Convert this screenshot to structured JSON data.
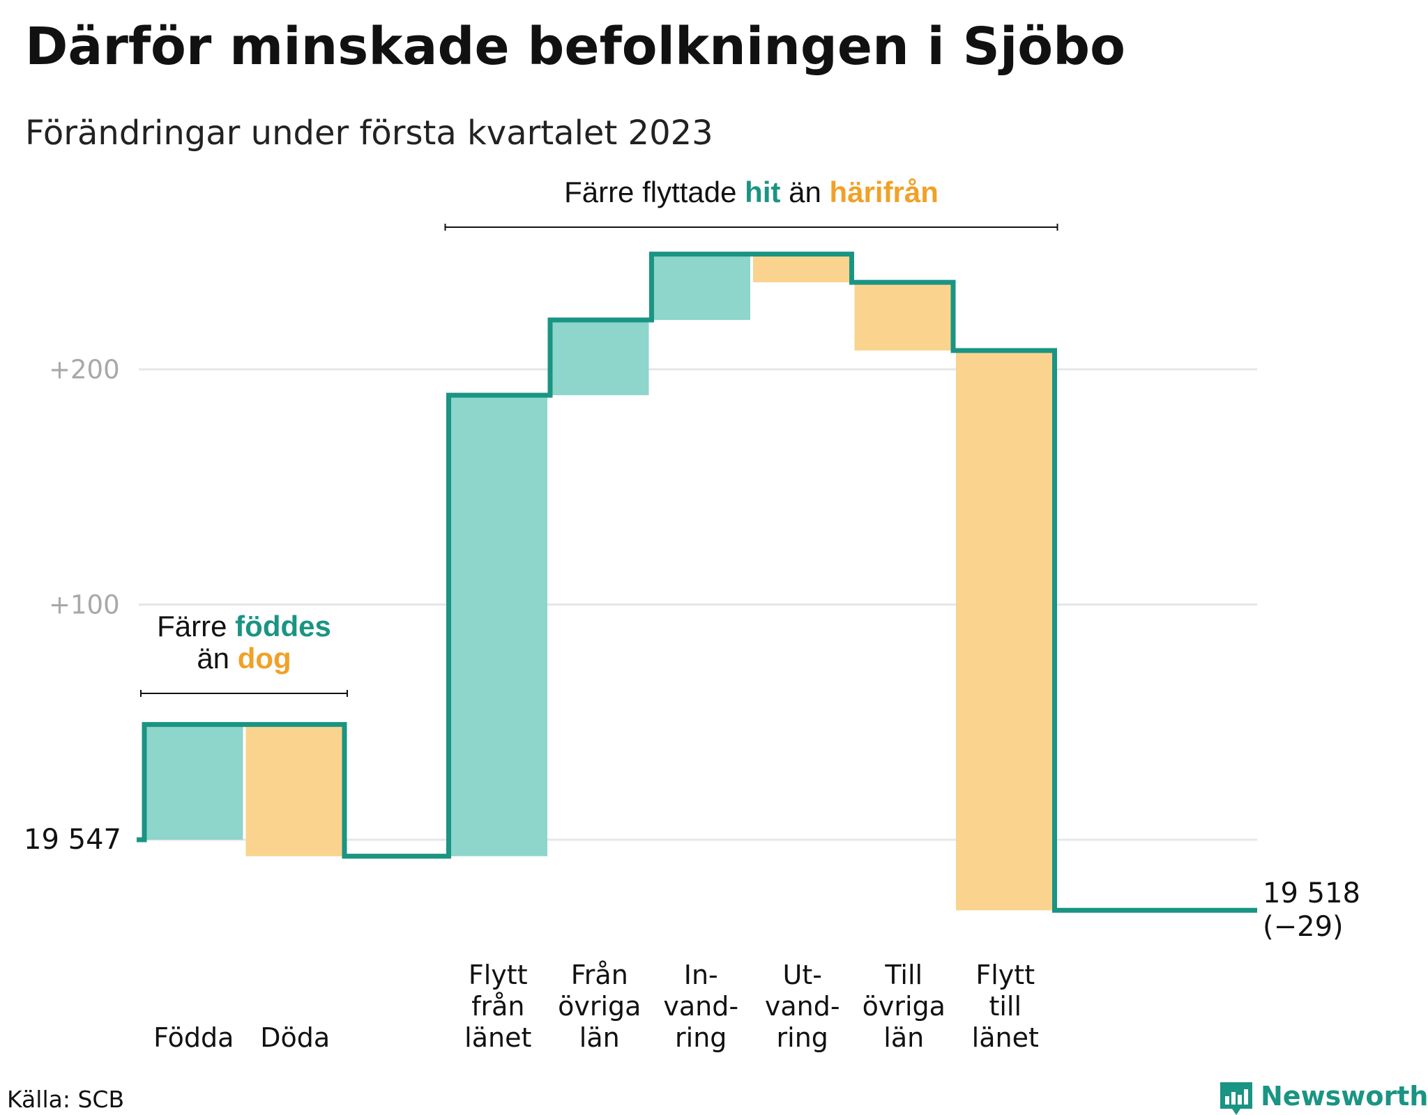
{
  "title": "Därför minskade befolkningen i Sjöbo",
  "subtitle": "Förändringar under första kvartalet 2023",
  "source": "Källa: SCB",
  "brand": "Newsworthy",
  "colors": {
    "inflow_fill": "#8ed5cc",
    "outflow_fill": "#fad48e",
    "line": "#1a9483",
    "accent_teal": "#1a9483",
    "accent_orange": "#f0a127",
    "grid": "#e6e6e6"
  },
  "chart_data": {
    "type": "waterfall",
    "start": {
      "label": "19 547",
      "value": 0
    },
    "end": {
      "label": "19 518",
      "sublabel": "(−29)",
      "value": -29
    },
    "steps": [
      {
        "key": "fodda",
        "label_lines": [
          "Födda"
        ],
        "change": 49,
        "kind": "in"
      },
      {
        "key": "doda",
        "label_lines": [
          "Döda"
        ],
        "change": -56,
        "kind": "out"
      },
      {
        "key": "flytt_fran_lanet",
        "label_lines": [
          "Flytt",
          "från",
          "länet"
        ],
        "change": 196,
        "kind": "in"
      },
      {
        "key": "fran_ovriga_lan",
        "label_lines": [
          "Från",
          "övriga",
          "län"
        ],
        "change": 32,
        "kind": "in"
      },
      {
        "key": "invandring",
        "label_lines": [
          "In-",
          "vand-",
          "ring"
        ],
        "change": 28,
        "kind": "in"
      },
      {
        "key": "utvandring",
        "label_lines": [
          "Ut-",
          "vand-",
          "ring"
        ],
        "change": -12,
        "kind": "out"
      },
      {
        "key": "till_ovriga_lan",
        "label_lines": [
          "Till",
          "övriga",
          "län"
        ],
        "change": -29,
        "kind": "out"
      },
      {
        "key": "flytt_till_lanet",
        "label_lines": [
          "Flytt",
          "till",
          "länet"
        ],
        "change": -238,
        "kind": "out"
      }
    ],
    "y_ticks": [
      {
        "value": 0,
        "label": "19 547",
        "style": "dark"
      },
      {
        "value": 100,
        "label": "+100",
        "style": "grey"
      },
      {
        "value": 200,
        "label": "+200",
        "style": "grey"
      }
    ],
    "ylim": [
      -40,
      260
    ],
    "grid": true,
    "annotations": [
      {
        "key": "births",
        "spans": [
          "fodda",
          "doda"
        ],
        "lines": [
          [
            {
              "text": "Färre ",
              "tone": "plain"
            },
            {
              "text": "föddes",
              "tone": "teal"
            }
          ],
          [
            {
              "text": "än ",
              "tone": "plain"
            },
            {
              "text": "dog",
              "tone": "orange"
            }
          ]
        ]
      },
      {
        "key": "migration",
        "spans": [
          "flytt_fran_lanet",
          "flytt_till_lanet"
        ],
        "lines": [
          [
            {
              "text": "Färre flyttade ",
              "tone": "plain"
            },
            {
              "text": "hit",
              "tone": "teal"
            },
            {
              "text": " än ",
              "tone": "plain"
            },
            {
              "text": "härifrån",
              "tone": "orange"
            }
          ]
        ]
      }
    ]
  }
}
